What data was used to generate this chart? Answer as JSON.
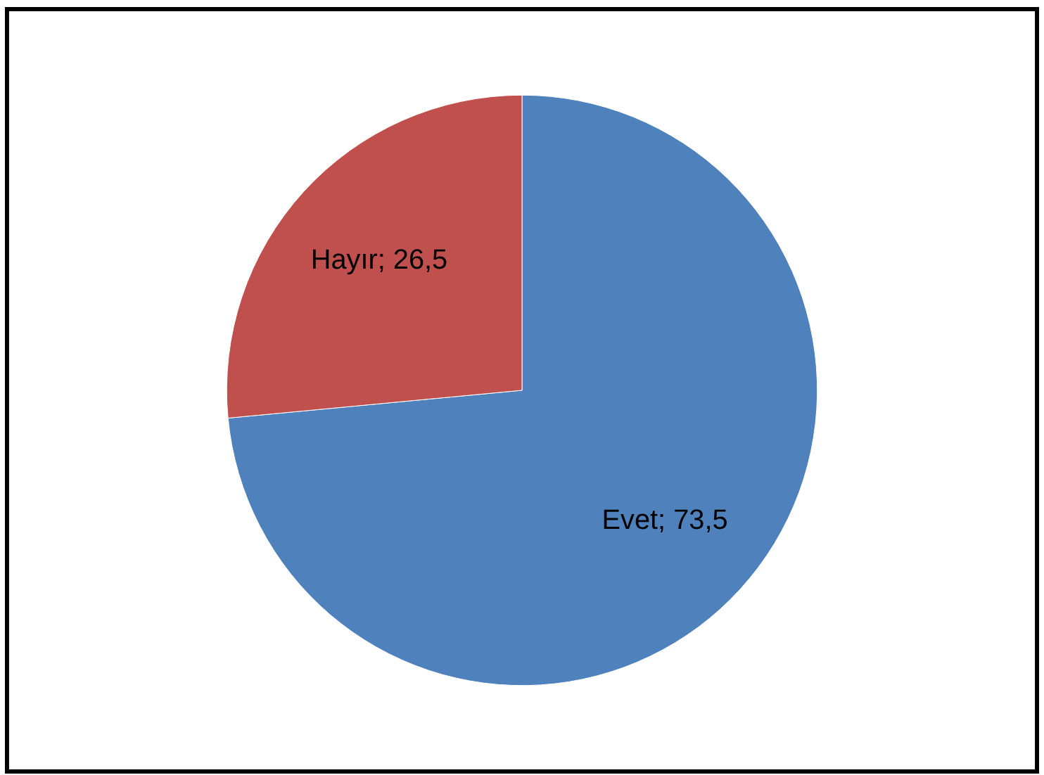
{
  "chart_data": {
    "type": "pie",
    "categories": [
      "Evet",
      "Hayır"
    ],
    "values": [
      73.5,
      26.5
    ],
    "colors": [
      "#4f81bd",
      "#c0504d"
    ],
    "value_labels": [
      "73,5",
      "26,5"
    ]
  }
}
